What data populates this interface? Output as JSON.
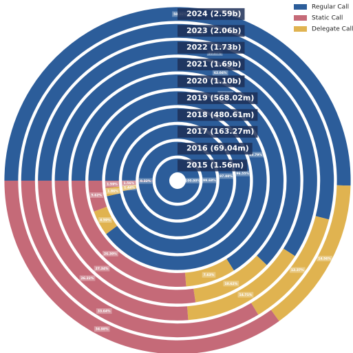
{
  "chart_data": {
    "type": "multi-ring-donut",
    "categories": [
      "2015 (1.56m)",
      "2016 (69.04m)",
      "2017 (163.27m)",
      "2018 (480.61m)",
      "2019 (568.02m)",
      "2020 (1.10b)",
      "2021 (1.69b)",
      "2022 (1.73b)",
      "2023 (2.06b)",
      "2024 (2.59b)"
    ],
    "series": [
      {
        "name": "Regular Call",
        "color": "#2c5d9a",
        "values": [
          100.0,
          99.68,
          97.0,
          96.55,
          89.79,
          66.07,
          62.04,
          59.07,
          53.99,
          50.46
        ],
        "value_labels": [
          "100.00%",
          "99.68%",
          "97.00%",
          "96.55%",
          "89.79%",
          "66.07%",
          "62.04%",
          "59.07%",
          "53.99%",
          "50.46%"
        ]
      },
      {
        "name": "Delegate Call",
        "color": "#e0b350",
        "values": [
          0,
          0,
          1.44,
          1.86,
          4.59,
          7.63,
          10.62,
          14.71,
          12.37,
          14.56
        ],
        "value_labels": [
          null,
          null,
          "1.44%",
          "1.86%",
          "4.59%",
          "7.63%",
          "10.62%",
          "14.71%",
          "12.37%",
          "14.56%"
        ]
      },
      {
        "name": "Static Call",
        "color": "#c56a78",
        "values": [
          0,
          0.32,
          1.56,
          1.59,
          5.62,
          26.3,
          27.34,
          26.22,
          33.64,
          34.98
        ],
        "value_labels": [
          null,
          "0.32%",
          "1.56%",
          "1.59%",
          "5.62%",
          "26.30%",
          "27.34%",
          "26.22%",
          "33.64%",
          "34.98%"
        ]
      }
    ],
    "legend_order": [
      "Regular Call",
      "Static Call",
      "Delegate Call"
    ],
    "legend": "upper right"
  }
}
